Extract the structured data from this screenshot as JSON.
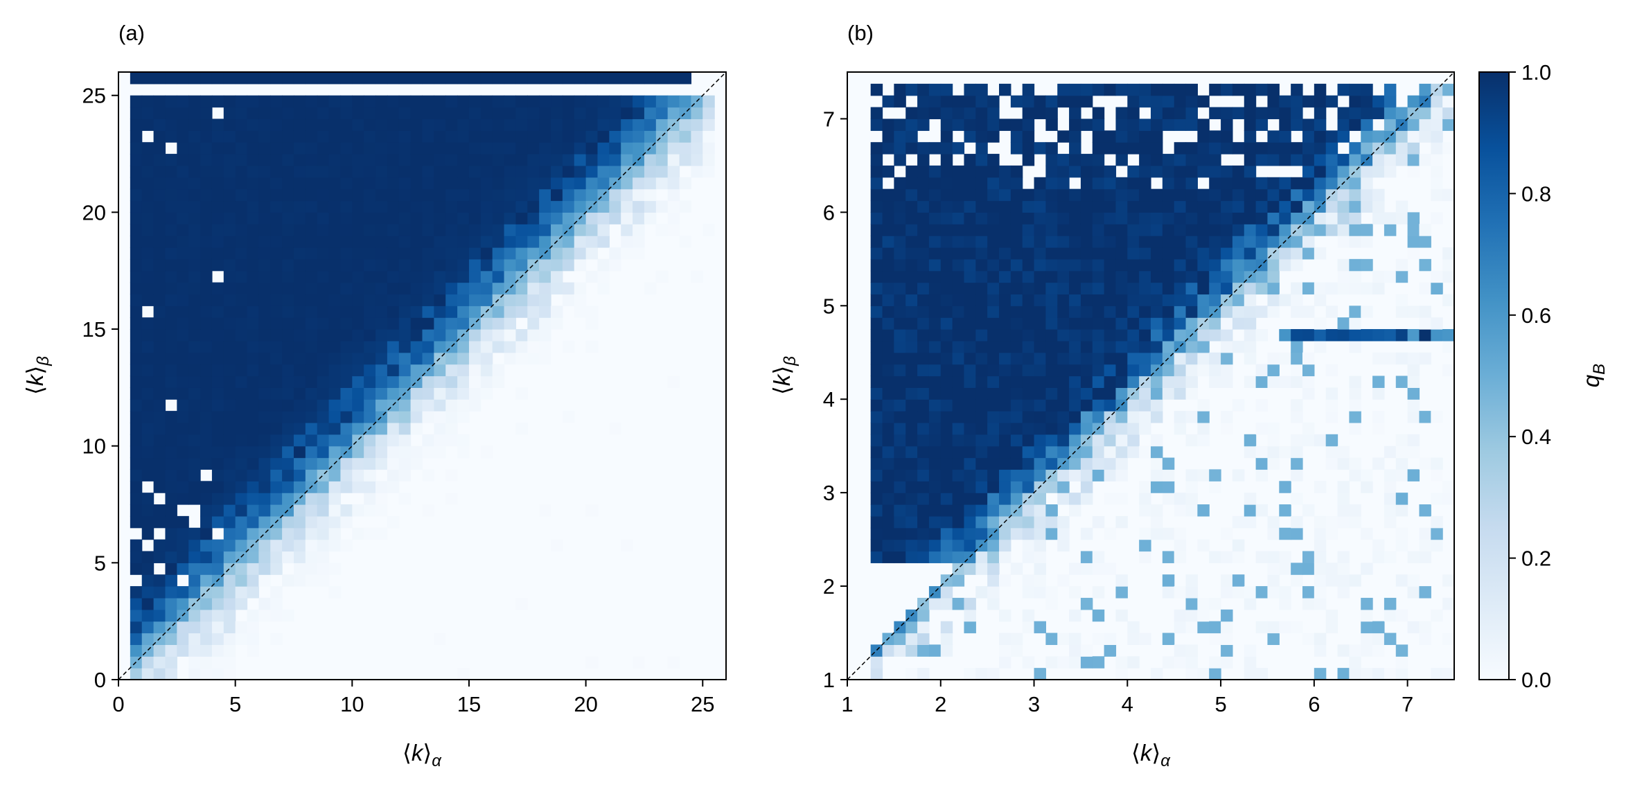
{
  "chart_data": [
    {
      "type": "heatmap",
      "panel_label": "(a)",
      "xlabel": "⟨k⟩α",
      "ylabel": "⟨k⟩β",
      "xlim": [
        0,
        26
      ],
      "ylim": [
        0,
        26
      ],
      "xticks": [
        0,
        5,
        10,
        15,
        20,
        25
      ],
      "yticks": [
        0,
        5,
        10,
        15,
        20,
        25
      ],
      "diagonal_reference_line": true,
      "grid_resolution": 0.5,
      "value_field_description": "q_B ≈ 1 above the diagonal (⟨k⟩β > ⟨k⟩α), ≈ 0 below; transition band about 2–3 units wide; top row at 25.5 filled up to ⟨k⟩α ≈ 24; row near 25 empty; data begin at ⟨k⟩α ≈ 0.5",
      "transition_width": 2.6,
      "data_x_start": 0.5,
      "data_x_max": 25.0,
      "top_row_y": 25.5,
      "top_row_x_end": 24.0,
      "empty_row_y": 25.0,
      "missing_cells": [
        [
          1.0,
          23.0
        ],
        [
          2.0,
          22.5
        ],
        [
          4.0,
          24.0
        ],
        [
          4.0,
          17.0
        ],
        [
          1.0,
          15.5
        ],
        [
          2.0,
          11.5
        ],
        [
          3.5,
          8.5
        ],
        [
          1.0,
          8.0
        ],
        [
          1.5,
          7.5
        ],
        [
          2.5,
          7.0
        ],
        [
          3.0,
          7.0
        ],
        [
          0.5,
          6.0
        ],
        [
          1.0,
          5.5
        ],
        [
          1.5,
          6.0
        ],
        [
          3.0,
          6.5
        ],
        [
          4.0,
          6.0
        ],
        [
          0.5,
          4.0
        ],
        [
          1.5,
          4.5
        ],
        [
          2.5,
          4.0
        ]
      ]
    },
    {
      "type": "heatmap",
      "panel_label": "(b)",
      "xlabel": "⟨k⟩α",
      "ylabel": "⟨k⟩β",
      "xlim": [
        1,
        7.5
      ],
      "ylim": [
        1,
        7.5
      ],
      "xticks": [
        1,
        2,
        3,
        4,
        5,
        6,
        7
      ],
      "yticks": [
        1,
        2,
        3,
        4,
        5,
        6,
        7
      ],
      "diagonal_reference_line": true,
      "grid_resolution": 0.125,
      "value_field_description": "q_B ≈ 1 above the diagonal, ≈ 0 below, noisy with many empty cells near the top; a dark row near ⟨k⟩β ≈ 4.6 extending to ⟨k⟩α ≈ 7.5",
      "transition_width": 0.5,
      "data_x_start": 1.25,
      "data_y_start": 2.25,
      "data_y_max": 7.25,
      "highlight_row_y": 4.6,
      "missing_cells": [
        [
          1.8,
          6.5
        ],
        [
          2.1,
          6.0
        ],
        [
          3.1,
          6.0
        ],
        [
          2.6,
          5.25
        ],
        [
          3.1,
          5.0
        ],
        [
          1.6,
          2.8
        ],
        [
          1.9,
          2.8
        ],
        [
          2.1,
          2.9
        ],
        [
          2.4,
          6.6
        ],
        [
          2.9,
          6.6
        ],
        [
          3.4,
          6.6
        ],
        [
          3.9,
          6.6
        ],
        [
          4.4,
          6.6
        ]
      ]
    }
  ],
  "colorbar": {
    "label": "qB",
    "min": 0.0,
    "max": 1.0,
    "ticks": [
      "0.0",
      "0.2",
      "0.4",
      "0.6",
      "0.8",
      "1.0"
    ],
    "colormap": "Blues",
    "color_stops": [
      "#f7fbff",
      "#deebf7",
      "#c6dbef",
      "#9ecae1",
      "#6baed6",
      "#4292c6",
      "#2171b5",
      "#08519c",
      "#08306b"
    ]
  }
}
